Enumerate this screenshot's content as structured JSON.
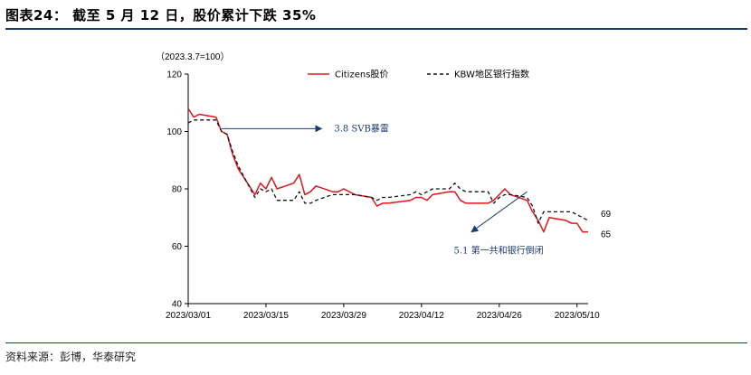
{
  "header": {
    "title": "图表24：  截至 5 月 12 日，股价累计下跌 35%"
  },
  "footer": {
    "source": "资料来源：彭博，华泰研究"
  },
  "chart_data": {
    "type": "line",
    "unit_label": "（2023.3.7=100）",
    "xlabel": "",
    "ylabel": "",
    "ylim": [
      40,
      120
    ],
    "yticks": [
      40,
      60,
      80,
      100,
      120
    ],
    "xticks": [
      "2023/03/01",
      "2023/03/15",
      "2023/03/29",
      "2023/04/12",
      "2023/04/26",
      "2023/05/10"
    ],
    "grid": false,
    "legend_position": "top",
    "x_start": "2023/03/01",
    "x_end": "2023/05/12",
    "series": [
      {
        "name": "Citizens股价",
        "color": "#e0161e",
        "dash": false,
        "end_label": "65",
        "points": [
          [
            "2023/03/01",
            108
          ],
          [
            "2023/03/02",
            105
          ],
          [
            "2023/03/03",
            106
          ],
          [
            "2023/03/06",
            105
          ],
          [
            "2023/03/07",
            100
          ],
          [
            "2023/03/08",
            99
          ],
          [
            "2023/03/09",
            92
          ],
          [
            "2023/03/10",
            87
          ],
          [
            "2023/03/13",
            78
          ],
          [
            "2023/03/14",
            82
          ],
          [
            "2023/03/15",
            80
          ],
          [
            "2023/03/16",
            84
          ],
          [
            "2023/03/17",
            80
          ],
          [
            "2023/03/20",
            82
          ],
          [
            "2023/03/21",
            85
          ],
          [
            "2023/03/22",
            78
          ],
          [
            "2023/03/23",
            79
          ],
          [
            "2023/03/24",
            81
          ],
          [
            "2023/03/27",
            79
          ],
          [
            "2023/03/28",
            79
          ],
          [
            "2023/03/29",
            80
          ],
          [
            "2023/03/30",
            79
          ],
          [
            "2023/03/31",
            78
          ],
          [
            "2023/04/03",
            77
          ],
          [
            "2023/04/04",
            74
          ],
          [
            "2023/04/05",
            75
          ],
          [
            "2023/04/06",
            75
          ],
          [
            "2023/04/10",
            76
          ],
          [
            "2023/04/11",
            77
          ],
          [
            "2023/04/12",
            77
          ],
          [
            "2023/04/13",
            76
          ],
          [
            "2023/04/14",
            78
          ],
          [
            "2023/04/17",
            79
          ],
          [
            "2023/04/18",
            79
          ],
          [
            "2023/04/19",
            76
          ],
          [
            "2023/04/20",
            75
          ],
          [
            "2023/04/21",
            75
          ],
          [
            "2023/04/24",
            75
          ],
          [
            "2023/04/25",
            76
          ],
          [
            "2023/04/26",
            78
          ],
          [
            "2023/04/27",
            80
          ],
          [
            "2023/04/28",
            78
          ],
          [
            "2023/05/01",
            76
          ],
          [
            "2023/05/02",
            72
          ],
          [
            "2023/05/03",
            69
          ],
          [
            "2023/05/04",
            65
          ],
          [
            "2023/05/05",
            70
          ],
          [
            "2023/05/08",
            69
          ],
          [
            "2023/05/09",
            68
          ],
          [
            "2023/05/10",
            68
          ],
          [
            "2023/05/11",
            65
          ],
          [
            "2023/05/12",
            65
          ]
        ]
      },
      {
        "name": "KBW地区银行指数",
        "color": "#111111",
        "dash": true,
        "end_label": "69",
        "points": [
          [
            "2023/03/01",
            103
          ],
          [
            "2023/03/02",
            104
          ],
          [
            "2023/03/03",
            104
          ],
          [
            "2023/03/06",
            104
          ],
          [
            "2023/03/07",
            100
          ],
          [
            "2023/03/08",
            99
          ],
          [
            "2023/03/09",
            93
          ],
          [
            "2023/03/10",
            88
          ],
          [
            "2023/03/13",
            77
          ],
          [
            "2023/03/14",
            80
          ],
          [
            "2023/03/15",
            79
          ],
          [
            "2023/03/16",
            80
          ],
          [
            "2023/03/17",
            76
          ],
          [
            "2023/03/20",
            76
          ],
          [
            "2023/03/21",
            79
          ],
          [
            "2023/03/22",
            75
          ],
          [
            "2023/03/23",
            75
          ],
          [
            "2023/03/24",
            76
          ],
          [
            "2023/03/27",
            78
          ],
          [
            "2023/03/28",
            78
          ],
          [
            "2023/03/29",
            78
          ],
          [
            "2023/03/30",
            78
          ],
          [
            "2023/03/31",
            78
          ],
          [
            "2023/04/03",
            77
          ],
          [
            "2023/04/04",
            76
          ],
          [
            "2023/04/05",
            77
          ],
          [
            "2023/04/06",
            77
          ],
          [
            "2023/04/10",
            78
          ],
          [
            "2023/04/11",
            79
          ],
          [
            "2023/04/12",
            78
          ],
          [
            "2023/04/13",
            79
          ],
          [
            "2023/04/14",
            80
          ],
          [
            "2023/04/17",
            80
          ],
          [
            "2023/04/18",
            82
          ],
          [
            "2023/04/19",
            80
          ],
          [
            "2023/04/20",
            79
          ],
          [
            "2023/04/21",
            79
          ],
          [
            "2023/04/24",
            79
          ],
          [
            "2023/04/25",
            75
          ],
          [
            "2023/04/26",
            77
          ],
          [
            "2023/04/27",
            78
          ],
          [
            "2023/04/28",
            78
          ],
          [
            "2023/05/01",
            77
          ],
          [
            "2023/05/02",
            74
          ],
          [
            "2023/05/03",
            68
          ],
          [
            "2023/05/04",
            72
          ],
          [
            "2023/05/05",
            72
          ],
          [
            "2023/05/08",
            72
          ],
          [
            "2023/05/09",
            72
          ],
          [
            "2023/05/10",
            71
          ],
          [
            "2023/05/11",
            70
          ],
          [
            "2023/05/12",
            69
          ]
        ]
      }
    ],
    "annotations": [
      {
        "text": "3.8 SVB暴雷",
        "from": [
          "2023/03/07",
          101
        ],
        "to": [
          "2023/03/25",
          101
        ],
        "arrow": "right"
      },
      {
        "text": "5.1 第一共和银行倒闭",
        "from": [
          "2023/05/01",
          79
        ],
        "to": [
          "2023/04/21",
          65
        ],
        "arrow": "down-left"
      }
    ]
  }
}
